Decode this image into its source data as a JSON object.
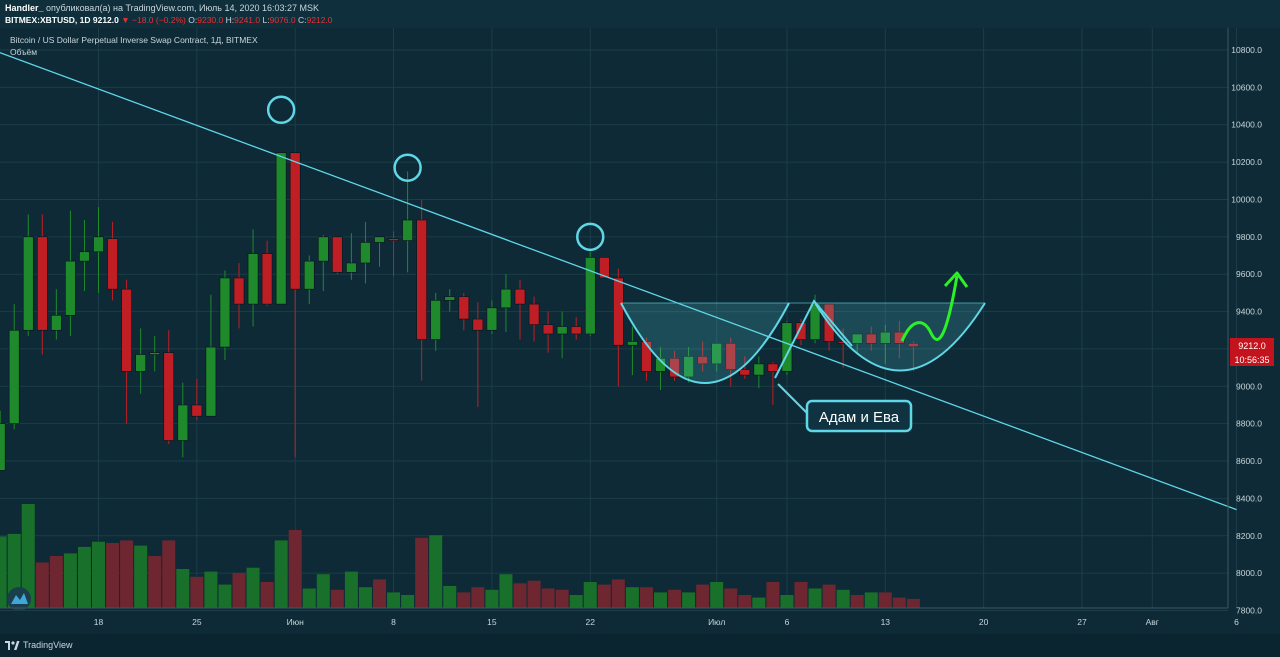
{
  "header": {
    "author": "Handler_",
    "published_text": "опубликовал(а) на TradingView.com, Июль 14, 2020 16:03:27 MSK",
    "symbol": "BITMEX:XBTUSD, 1D",
    "last": "9212.0",
    "change": "▼ −18.0 (−0.2%)",
    "o_label": "O:",
    "o_value": "9230.0",
    "h_label": "H:",
    "h_value": "9241.0",
    "l_label": "L:",
    "l_value": "9076.0",
    "c_label": "C:",
    "c_value": "9212.0"
  },
  "footer": {
    "brand": "TradingView",
    "logo_icon": "tradingview-logo-icon"
  },
  "colors": {
    "background": "#0d2a36",
    "up": "#1f8a2b",
    "down": "#bf1f24",
    "vol_up": "#18702a",
    "vol_down": "#6e2630",
    "trendline": "#5fd7e6",
    "arrow": "#2cf028",
    "price_badge": "#c3141e"
  },
  "chart_data": {
    "type": "candlestick",
    "title": "Bitcoin / US Dollar Perpetual Inverse Swap Contract, 1Д, BITMEX",
    "subtitle": "Объём",
    "ylim": [
      7750,
      10900
    ],
    "y_ticks": [
      "10800.0",
      "10600.0",
      "10400.0",
      "10200.0",
      "10000.0",
      "9800.0",
      "9600.0",
      "9400.0",
      "9200.0",
      "9000.0",
      "8800.0",
      "8600.0",
      "8400.0",
      "8200.0",
      "8000.0",
      "7800.0"
    ],
    "x_ticks": [
      {
        "label": "18",
        "day": 18
      },
      {
        "label": "25",
        "day": 25
      },
      {
        "label": "Июн",
        "day": 32
      },
      {
        "label": "8",
        "day": 39
      },
      {
        "label": "15",
        "day": 46
      },
      {
        "label": "22",
        "day": 53
      },
      {
        "label": "Июл",
        "day": 62
      },
      {
        "label": "6",
        "day": 67
      },
      {
        "label": "13",
        "day": 74
      },
      {
        "label": "20",
        "day": 81
      },
      {
        "label": "27",
        "day": 88
      },
      {
        "label": "Авг",
        "day": 93
      },
      {
        "label": "6",
        "day": 99
      }
    ],
    "x_axis_unit": "day (1 = May 1, 2020)",
    "grid": true,
    "current_price": "9212.0",
    "countdown": "10:56:35",
    "candles": [
      {
        "day": 11,
        "o": 8550,
        "h": 8870,
        "l": 8550,
        "c": 8800
      },
      {
        "day": 12,
        "o": 8800,
        "h": 9440,
        "l": 8770,
        "c": 9300
      },
      {
        "day": 13,
        "o": 9300,
        "h": 9920,
        "l": 9270,
        "c": 9800
      },
      {
        "day": 14,
        "o": 9800,
        "h": 9920,
        "l": 9170,
        "c": 9300
      },
      {
        "day": 15,
        "o": 9300,
        "h": 9520,
        "l": 9250,
        "c": 9380
      },
      {
        "day": 16,
        "o": 9380,
        "h": 9940,
        "l": 9270,
        "c": 9670
      },
      {
        "day": 17,
        "o": 9670,
        "h": 9890,
        "l": 9510,
        "c": 9720
      },
      {
        "day": 18,
        "o": 9720,
        "h": 9960,
        "l": 9500,
        "c": 9800
      },
      {
        "day": 19,
        "o": 9790,
        "h": 9880,
        "l": 9460,
        "c": 9520
      },
      {
        "day": 20,
        "o": 9520,
        "h": 9570,
        "l": 8800,
        "c": 9080
      },
      {
        "day": 21,
        "o": 9080,
        "h": 9310,
        "l": 8960,
        "c": 9170
      },
      {
        "day": 22,
        "o": 9170,
        "h": 9270,
        "l": 9080,
        "c": 9180
      },
      {
        "day": 23,
        "o": 9180,
        "h": 9300,
        "l": 8690,
        "c": 8710
      },
      {
        "day": 24,
        "o": 8710,
        "h": 9020,
        "l": 8620,
        "c": 8900
      },
      {
        "day": 25,
        "o": 8900,
        "h": 9040,
        "l": 8820,
        "c": 8840
      },
      {
        "day": 26,
        "o": 8840,
        "h": 9490,
        "l": 8840,
        "c": 9210
      },
      {
        "day": 27,
        "o": 9210,
        "h": 9620,
        "l": 9140,
        "c": 9580
      },
      {
        "day": 28,
        "o": 9580,
        "h": 9660,
        "l": 9310,
        "c": 9440
      },
      {
        "day": 29,
        "o": 9440,
        "h": 9840,
        "l": 9320,
        "c": 9710
      },
      {
        "day": 30,
        "o": 9710,
        "h": 9780,
        "l": 9430,
        "c": 9440
      },
      {
        "day": 31,
        "o": 9440,
        "h": 10250,
        "l": 9440,
        "c": 10250
      },
      {
        "day": 32,
        "o": 10250,
        "h": 10250,
        "l": 8620,
        "c": 9520
      },
      {
        "day": 33,
        "o": 9520,
        "h": 9700,
        "l": 9440,
        "c": 9670
      },
      {
        "day": 34,
        "o": 9670,
        "h": 9810,
        "l": 9510,
        "c": 9800
      },
      {
        "day": 35,
        "o": 9800,
        "h": 9800,
        "l": 9600,
        "c": 9610
      },
      {
        "day": 36,
        "o": 9610,
        "h": 9820,
        "l": 9570,
        "c": 9660
      },
      {
        "day": 37,
        "o": 9660,
        "h": 9880,
        "l": 9550,
        "c": 9770
      },
      {
        "day": 38,
        "o": 9770,
        "h": 9800,
        "l": 9640,
        "c": 9800
      },
      {
        "day": 39,
        "o": 9790,
        "h": 9830,
        "l": 9590,
        "c": 9780
      },
      {
        "day": 40,
        "o": 9780,
        "h": 10150,
        "l": 9610,
        "c": 9890
      },
      {
        "day": 41,
        "o": 9890,
        "h": 10000,
        "l": 9030,
        "c": 9250
      },
      {
        "day": 42,
        "o": 9250,
        "h": 9500,
        "l": 9190,
        "c": 9460
      },
      {
        "day": 43,
        "o": 9460,
        "h": 9520,
        "l": 9400,
        "c": 9480
      },
      {
        "day": 44,
        "o": 9480,
        "h": 9500,
        "l": 9300,
        "c": 9360
      },
      {
        "day": 45,
        "o": 9360,
        "h": 9450,
        "l": 8890,
        "c": 9300
      },
      {
        "day": 46,
        "o": 9300,
        "h": 9460,
        "l": 9280,
        "c": 9420
      },
      {
        "day": 47,
        "o": 9420,
        "h": 9600,
        "l": 9290,
        "c": 9520
      },
      {
        "day": 48,
        "o": 9520,
        "h": 9570,
        "l": 9250,
        "c": 9440
      },
      {
        "day": 49,
        "o": 9440,
        "h": 9480,
        "l": 9240,
        "c": 9330
      },
      {
        "day": 50,
        "o": 9330,
        "h": 9400,
        "l": 9180,
        "c": 9280
      },
      {
        "day": 51,
        "o": 9280,
        "h": 9400,
        "l": 9150,
        "c": 9320
      },
      {
        "day": 52,
        "o": 9320,
        "h": 9370,
        "l": 9250,
        "c": 9280
      },
      {
        "day": 53,
        "o": 9280,
        "h": 9720,
        "l": 9270,
        "c": 9690
      },
      {
        "day": 54,
        "o": 9690,
        "h": 9690,
        "l": 9600,
        "c": 9580
      },
      {
        "day": 55,
        "o": 9580,
        "h": 9630,
        "l": 9000,
        "c": 9220
      },
      {
        "day": 56,
        "o": 9220,
        "h": 9320,
        "l": 9060,
        "c": 9240
      },
      {
        "day": 57,
        "o": 9240,
        "h": 9260,
        "l": 9030,
        "c": 9080
      },
      {
        "day": 58,
        "o": 9080,
        "h": 9210,
        "l": 8980,
        "c": 9150
      },
      {
        "day": 59,
        "o": 9150,
        "h": 9190,
        "l": 9030,
        "c": 9050
      },
      {
        "day": 60,
        "o": 9050,
        "h": 9210,
        "l": 9020,
        "c": 9160
      },
      {
        "day": 61,
        "o": 9160,
        "h": 9240,
        "l": 9080,
        "c": 9120
      },
      {
        "day": 62,
        "o": 9120,
        "h": 9230,
        "l": 9080,
        "c": 9230
      },
      {
        "day": 63,
        "o": 9230,
        "h": 9260,
        "l": 9000,
        "c": 9090
      },
      {
        "day": 64,
        "o": 9090,
        "h": 9160,
        "l": 9040,
        "c": 9060
      },
      {
        "day": 65,
        "o": 9060,
        "h": 9160,
        "l": 8990,
        "c": 9120
      },
      {
        "day": 66,
        "o": 9120,
        "h": 9130,
        "l": 8900,
        "c": 9080
      },
      {
        "day": 67,
        "o": 9080,
        "h": 9350,
        "l": 9060,
        "c": 9340
      },
      {
        "day": 68,
        "o": 9340,
        "h": 9360,
        "l": 9220,
        "c": 9250
      },
      {
        "day": 69,
        "o": 9250,
        "h": 9490,
        "l": 9230,
        "c": 9440
      },
      {
        "day": 70,
        "o": 9440,
        "h": 9440,
        "l": 9190,
        "c": 9240
      },
      {
        "day": 71,
        "o": 9240,
        "h": 9310,
        "l": 9100,
        "c": 9230
      },
      {
        "day": 72,
        "o": 9230,
        "h": 9280,
        "l": 9170,
        "c": 9280
      },
      {
        "day": 73,
        "o": 9280,
        "h": 9320,
        "l": 9190,
        "c": 9230
      },
      {
        "day": 74,
        "o": 9230,
        "h": 9330,
        "l": 9120,
        "c": 9290
      },
      {
        "day": 75,
        "o": 9290,
        "h": 9350,
        "l": 9150,
        "c": 9230
      },
      {
        "day": 76,
        "o": 9230,
        "h": 9240,
        "l": 9080,
        "c": 9212
      }
    ],
    "volume_up_days": [
      11,
      12,
      13,
      16,
      17,
      18,
      21,
      24,
      26,
      27,
      29,
      31,
      33,
      34,
      36,
      37,
      39,
      40,
      42,
      43,
      46,
      47,
      52,
      53,
      56,
      58,
      60,
      62,
      65,
      67,
      69,
      71,
      73
    ],
    "volume_levels": [
      55,
      57,
      80,
      35,
      40,
      42,
      47,
      51,
      50,
      52,
      48,
      40,
      52,
      30,
      24,
      28,
      18,
      27,
      31,
      20,
      52,
      60,
      15,
      26,
      14,
      28,
      16,
      22,
      12,
      10,
      54,
      56,
      17,
      12,
      16,
      14,
      26,
      19,
      21,
      15,
      14,
      10,
      20,
      18,
      22,
      16,
      16,
      12,
      14,
      12,
      18,
      20,
      15,
      10,
      8,
      20,
      10,
      20,
      15,
      18,
      14,
      10,
      12,
      12,
      8,
      7
    ]
  },
  "annotations": {
    "pattern_label": "Адам и Ева",
    "trendline": {
      "from": {
        "day": 4,
        "price": 10980
      },
      "to": {
        "day": 99,
        "price": 8340
      }
    },
    "touch_points": [
      {
        "day": 31,
        "price": 10480
      },
      {
        "day": 40,
        "price": 10170
      },
      {
        "day": 53,
        "price": 9800
      }
    ]
  }
}
